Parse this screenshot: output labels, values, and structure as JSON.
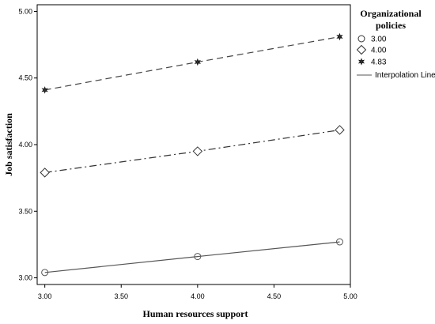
{
  "chart_data": {
    "type": "line",
    "xlabel": "Human resources support",
    "ylabel": "Job satisfaction",
    "xlim": [
      2.95,
      5.0
    ],
    "ylim": [
      2.95,
      5.05
    ],
    "x_ticks": [
      "3.00",
      "3.50",
      "4.00",
      "4.50",
      "5.00"
    ],
    "y_ticks": [
      "3.00",
      "3.50",
      "4.00",
      "4.50",
      "5.00"
    ],
    "legend": {
      "title_lines": [
        "Organizational",
        "policies"
      ],
      "placement": "top-right",
      "interpolation_label": "Interpolation Line"
    },
    "series": [
      {
        "name": "3.00",
        "marker": "circle",
        "dash": "solid",
        "color": "#555555",
        "x": [
          3.0,
          4.0,
          4.93
        ],
        "y": [
          3.04,
          3.16,
          3.27
        ]
      },
      {
        "name": "4.00",
        "marker": "diamond",
        "dash": "dashdot",
        "color": "#333333",
        "x": [
          3.0,
          4.0,
          4.93
        ],
        "y": [
          3.79,
          3.95,
          4.11
        ]
      },
      {
        "name": "4.83",
        "marker": "star",
        "dash": "dashed",
        "color": "#444444",
        "x": [
          3.0,
          4.0,
          4.93
        ],
        "y": [
          4.41,
          4.62,
          4.81
        ]
      }
    ]
  }
}
